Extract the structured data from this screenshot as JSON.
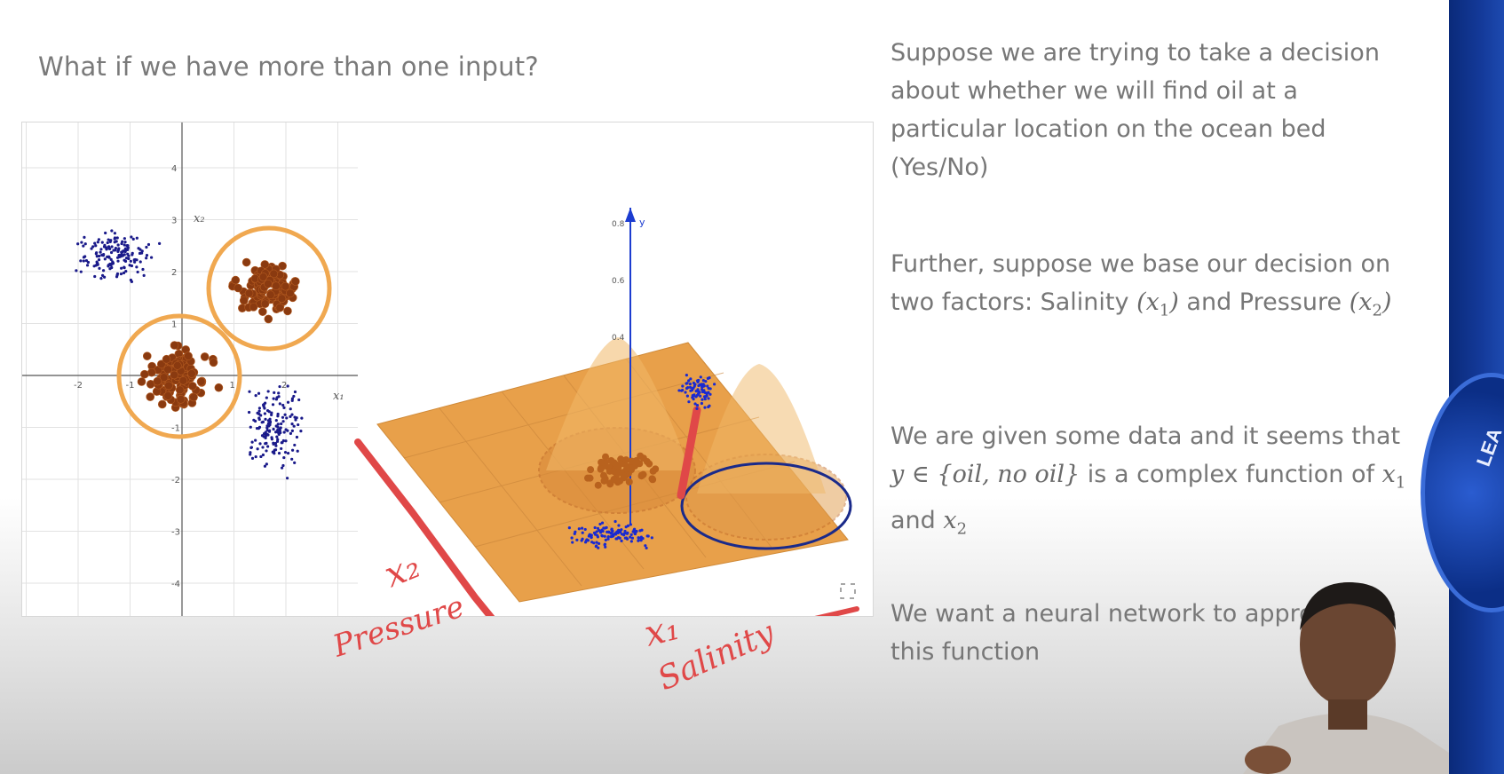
{
  "slide": {
    "title": "What if we have more than one input?"
  },
  "right_text": {
    "p1": "Suppose we are trying to take a decision about whether we will find oil at a particular location on the ocean bed (Yes/No)",
    "p2_before": "Further, suppose we base our decision on two factors: Salinity ",
    "p2_x1": "(x",
    "p2_x1_sub": "1",
    "p2_x1_close": ")",
    "p2_mid": " and Pressure ",
    "p2_x2": "(x",
    "p2_x2_sub": "2",
    "p2_x2_close": ")",
    "p3_before": "We are given some data and it seems that ",
    "p3_math": "y ∈ {oil, no oil}",
    "p3_mid": " is a complex function of ",
    "p3_x1": "x",
    "p3_x1_sub": "1",
    "p3_and": " and ",
    "p3_x2": "x",
    "p3_x2_sub": "2",
    "p4": "We want a neural network to approximate this function"
  },
  "scatter_plot": {
    "x_ticks": [
      "-2",
      "-1",
      "1",
      "2"
    ],
    "y_ticks": [
      "4",
      "3",
      "2",
      "1",
      "-1",
      "-2",
      "-3",
      "-4"
    ],
    "x_axis_label": "x₁",
    "y_axis_label": "x₂"
  },
  "surface_plot": {
    "z_ticks": [
      "0.8",
      "0.6",
      "0.4"
    ],
    "z_axis_label": "y"
  },
  "annotations": {
    "x2_label": "x₂",
    "pressure_label": "Pressure",
    "x1_label": "x₁",
    "salinity_label": "Salinity"
  },
  "colors": {
    "no_oil_points": "#1a1a8a",
    "oil_points": "#8a3a10",
    "circle": "#f0a850",
    "surface": "#e8a04a",
    "pen": "#e04848",
    "slide_text": "#777777",
    "brand_blue": "#143a9a"
  },
  "badge": {
    "text": "LEA"
  },
  "icons": {
    "expand": "expand-icon"
  }
}
